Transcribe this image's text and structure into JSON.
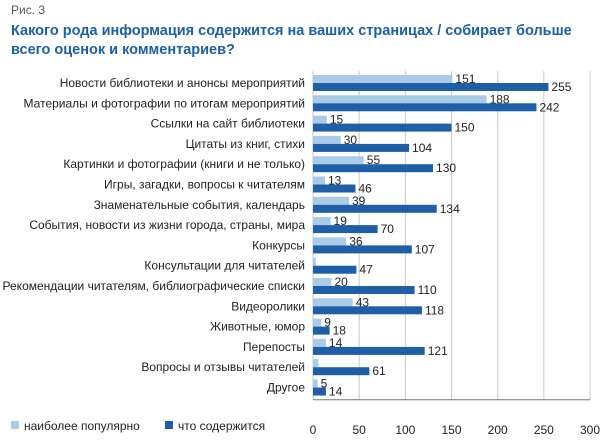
{
  "figure_label": "Рис. 3",
  "colors": {
    "popular": "#a9cbe8",
    "contains": "#1e5fa8",
    "grid": "#c8c8c8",
    "title": "#1a5fa8"
  },
  "chart_data": {
    "type": "bar",
    "orientation": "horizontal",
    "title": "Какого рода информация содержится на ваших страницах / собирает больше всего оценок и комментариев?",
    "categories": [
      "Новости библиотеки и анонсы мероприятий",
      "Материалы и фотографии по итогам мероприятий",
      "Ссылки на сайт библиотеки",
      "Цитаты из книг, стихи",
      "Картинки и фотографии (книги и не только)",
      "Игры, загадки, вопросы к читателям",
      "Знаменательные события, календарь",
      "События, новости из жизни города, страны, мира",
      "Конкурсы",
      "Консультации для читателей",
      "Рекомендации читателям, библиографические списки",
      "Видеоролики",
      "Животные, юмор",
      "Перепосты",
      "Вопросы и отзывы читателей",
      "Другое"
    ],
    "series": [
      {
        "name": "наиболее популярно",
        "values": [
          151,
          188,
          15,
          30,
          55,
          13,
          39,
          19,
          36,
          3,
          20,
          43,
          9,
          14,
          6,
          5
        ],
        "labels": [
          "151",
          "188",
          "15",
          "30",
          "55",
          "13",
          "39",
          "19",
          "36",
          "",
          "20",
          "43",
          "9",
          "14",
          "",
          "5"
        ]
      },
      {
        "name": "что содержится",
        "values": [
          255,
          242,
          150,
          104,
          130,
          46,
          134,
          70,
          107,
          47,
          110,
          118,
          18,
          121,
          61,
          14
        ],
        "labels": [
          "255",
          "242",
          "150",
          "104",
          "130",
          "46",
          "134",
          "70",
          "107",
          "47",
          "110",
          "118",
          "18",
          "121",
          "61",
          "14"
        ]
      }
    ],
    "xlim": [
      0,
      300
    ],
    "xticks": [
      0,
      50,
      100,
      150,
      200,
      250,
      300
    ],
    "grid": true,
    "legend": "bottom-left"
  }
}
